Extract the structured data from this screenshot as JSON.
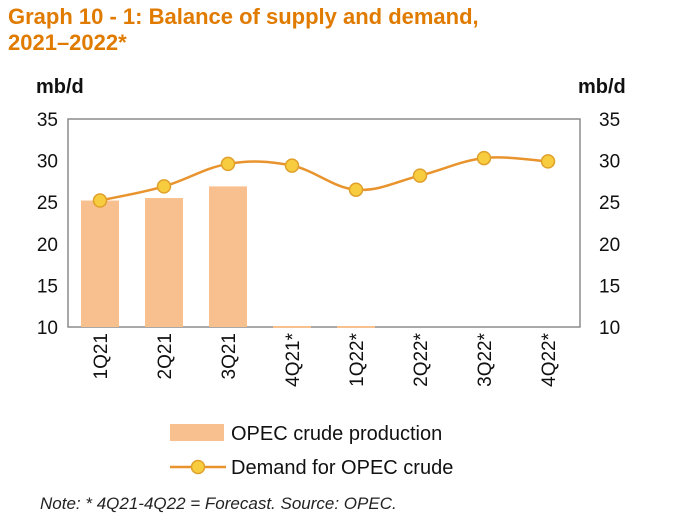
{
  "title_line1": "Graph 10 - 1: Balance of supply and demand,",
  "title_line2": "2021–2022*",
  "note": "Note: * 4Q21-4Q22 = Forecast. Source: OPEC.",
  "colors": {
    "title": "#E07B00",
    "bar": "#F9C08F",
    "line": "#E8932C",
    "marker_fill": "#F7CC3E",
    "marker_stroke": "#E0A02C",
    "axis_frame": "#8C8C8C"
  },
  "chart_data": {
    "type": "bar",
    "categories": [
      "1Q21",
      "2Q21",
      "3Q21",
      "4Q21*",
      "1Q22*",
      "2Q22*",
      "3Q22*",
      "4Q22*"
    ],
    "series": [
      {
        "name": "OPEC crude production",
        "type": "bar",
        "values": [
          25.2,
          25.5,
          26.9,
          null,
          null,
          null,
          null,
          null
        ]
      },
      {
        "name": "Demand for OPEC crude",
        "type": "line",
        "values": [
          25.2,
          26.9,
          29.6,
          29.4,
          26.5,
          28.2,
          30.3,
          29.9
        ]
      }
    ],
    "ylabel_left": "mb/d",
    "ylabel_right": "mb/d",
    "ylim": [
      10,
      35
    ],
    "yticks": [
      10,
      15,
      20,
      25,
      30,
      35
    ],
    "grid": false,
    "legend_position": "bottom"
  }
}
